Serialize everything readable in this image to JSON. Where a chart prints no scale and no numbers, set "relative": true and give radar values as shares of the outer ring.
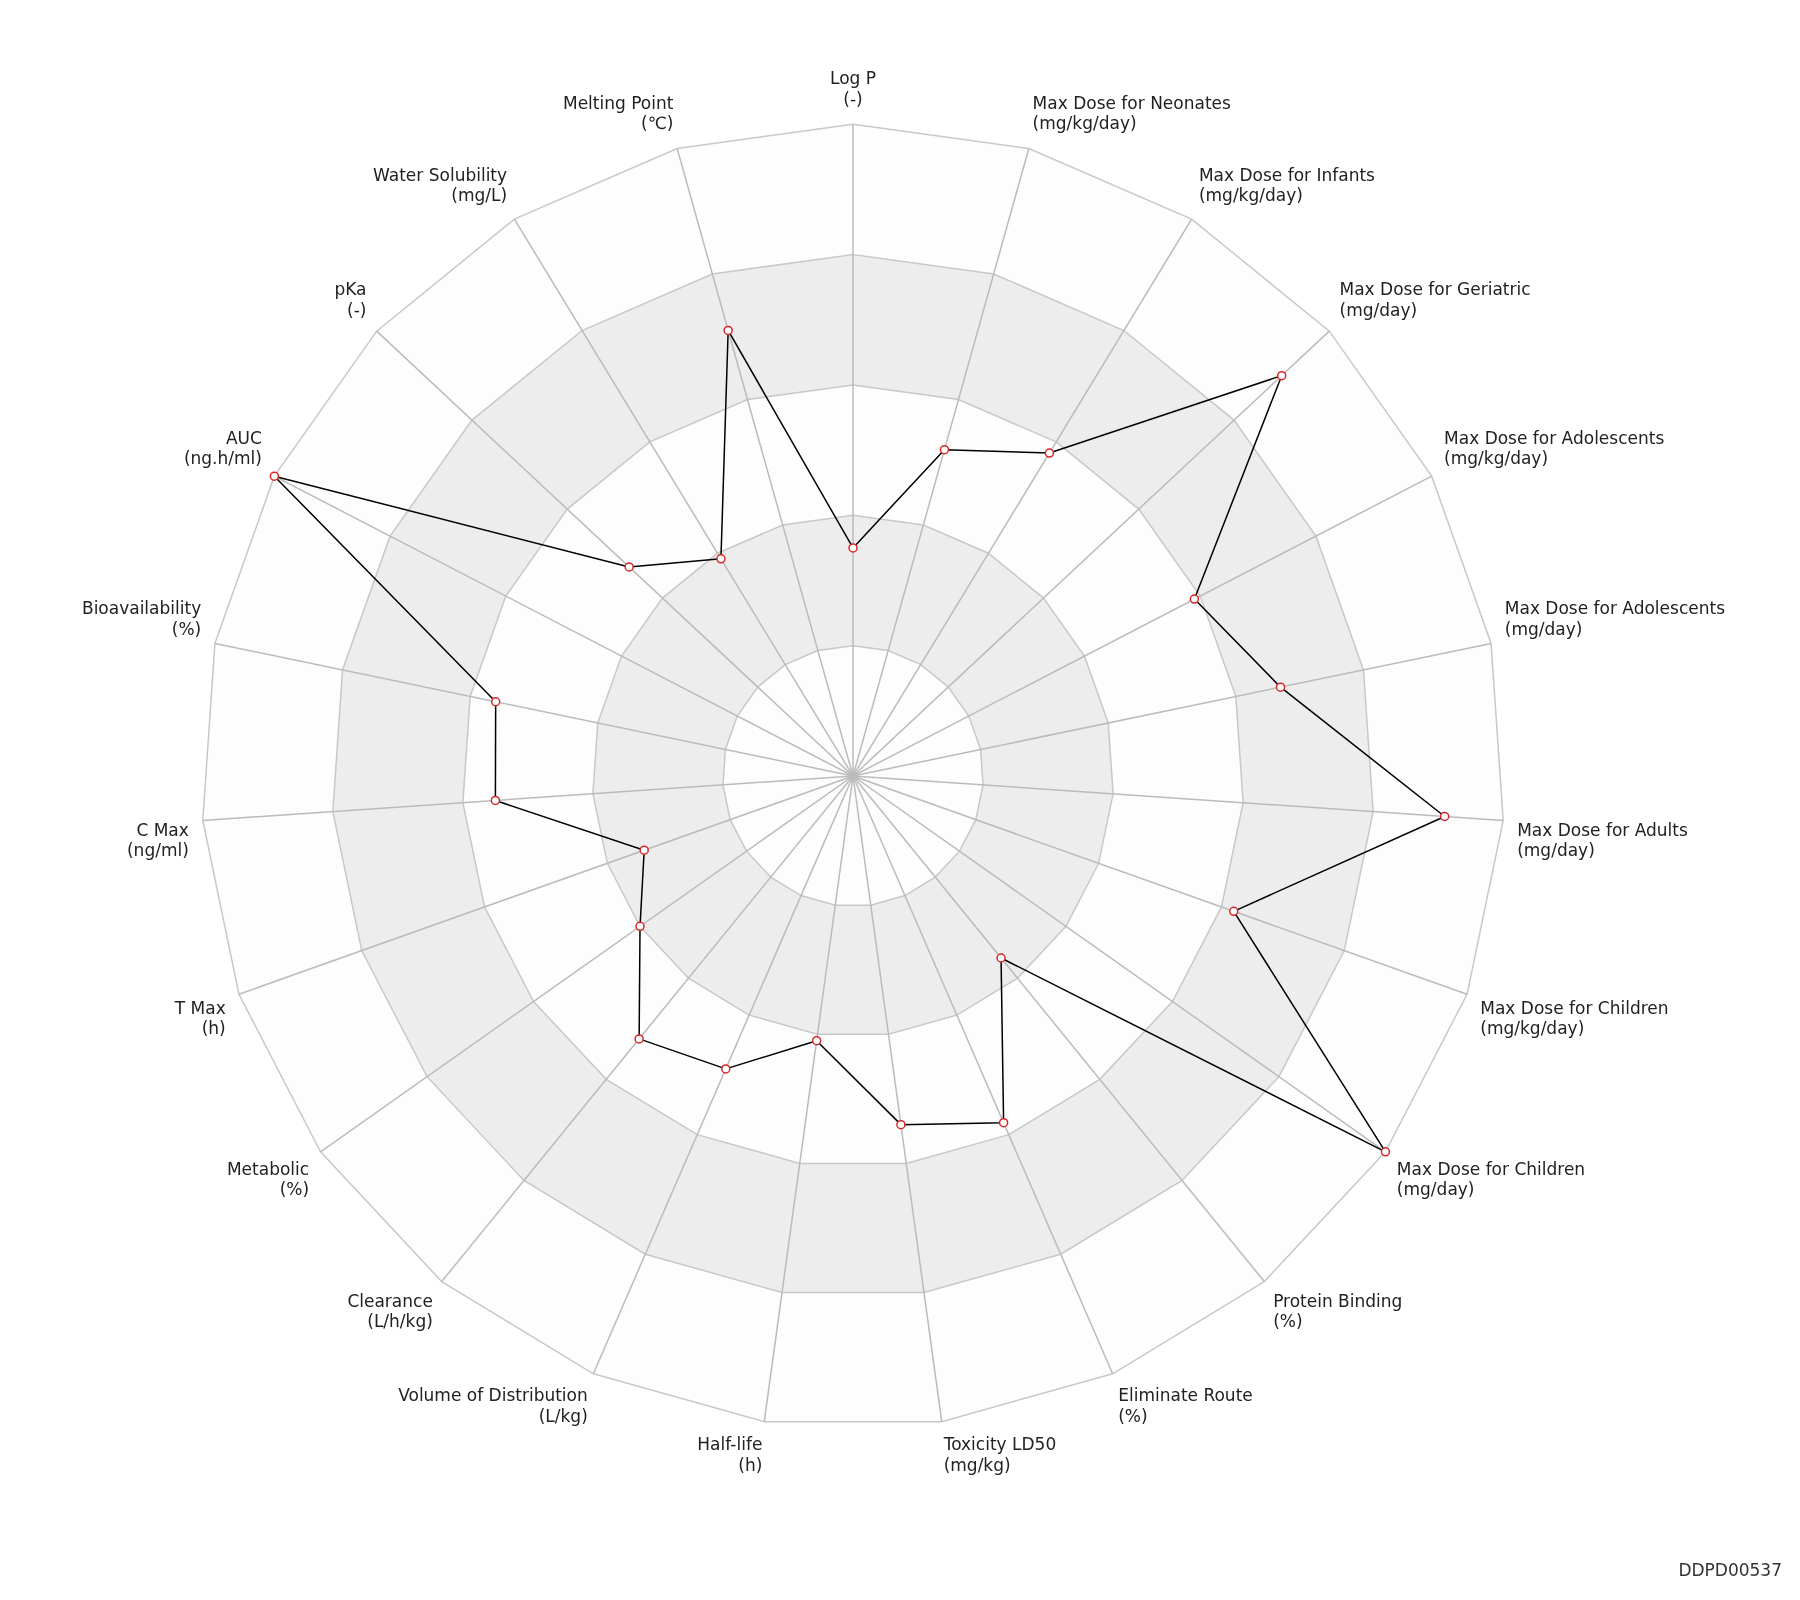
{
  "chart_data": {
    "type": "radar",
    "relative": true,
    "categories": [
      "Log P (-)",
      "Max Dose for Neonates (mg/kg/day)",
      "Max Dose for Infants (mg/kg/day)",
      "Max Dose for Geriatric (mg/day)",
      "Max Dose for Adolescents (mg/kg/day)",
      "Max Dose for Adolescents (mg/day)",
      "Max Dose for Adults (mg/day)",
      "Max Dose for Children (mg/kg/day)",
      "Max Dose for Children (mg/day)",
      "Protein Binding (%)",
      "Eliminate Route (%)",
      "Toxicity LD50 (mg/kg)",
      "Half-life (h)",
      "Volume of Distribution (L/kg)",
      "Clearance (L/h/kg)",
      "Metabolic (%)",
      "T Max (h)",
      "C Max (ng/ml)",
      "Bioavailability (%)",
      "AUC (ng.h/ml)",
      "pKa (-)",
      "Water Solubility (mg/L)",
      "Melting Point (℃)"
    ],
    "series": [
      {
        "color": "#000000",
        "values": [
          0.35,
          0.52,
          0.58,
          0.9,
          0.59,
          0.67,
          0.91,
          0.62,
          1.0,
          0.36,
          0.58,
          0.54,
          0.41,
          0.49,
          0.52,
          0.4,
          0.34,
          0.55,
          0.56,
          1.0,
          0.47,
          0.39,
          0.71
        ]
      }
    ],
    "marker": "circle",
    "grid": true,
    "legend": false,
    "annotations": [
      "DDPD00537"
    ]
  }
}
